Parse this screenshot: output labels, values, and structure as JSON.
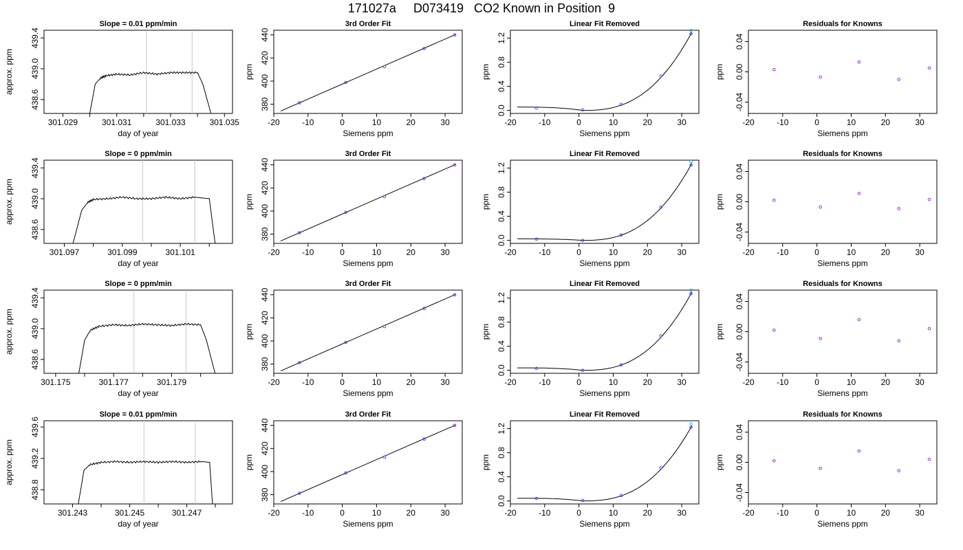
{
  "title": "171027a     D073419   CO2 Known in Position  9",
  "rows": [
    {
      "slope_title": "Slope =  0.01  ppm/min",
      "fit_title": "3rd Order Fit",
      "linfit_title": "Linear Fit Removed",
      "resid_title": "Residuals for Knowns",
      "time_xlabel": "day of year",
      "time_ylabel": "approx. ppm",
      "siemens_xlabel": "Siemens ppm",
      "ppm_ylabel": "ppm",
      "time_xlim": [
        301.0283,
        301.0353
      ],
      "time_xticks": [
        301.029,
        301.03,
        301.031,
        301.032,
        301.033,
        301.034,
        301.035
      ],
      "time_xticklabels": [
        "301.029",
        "",
        "301.031",
        "",
        "301.033",
        "",
        "301.035"
      ],
      "time_ylim": [
        438.42,
        439.5
      ],
      "time_yticks": [
        438.6,
        439.0,
        439.4
      ],
      "time_yticklabels": [
        "438.6",
        "439.0",
        "439.4"
      ],
      "time_vlines": [
        301.0321,
        301.0338
      ],
      "trace": {
        "start": 301.03,
        "rise_end": 301.0306,
        "plateau": 438.93,
        "plateau_end": 301.0341,
        "end": 301.0345,
        "points": [
          [
            301.03,
            438.42
          ],
          [
            301.0302,
            438.8
          ],
          [
            301.0304,
            438.88
          ],
          [
            301.0306,
            438.91
          ],
          [
            301.031,
            438.93
          ],
          [
            301.0315,
            438.92
          ],
          [
            301.032,
            438.95
          ],
          [
            301.0325,
            438.93
          ],
          [
            301.033,
            438.95
          ],
          [
            301.0335,
            438.95
          ],
          [
            301.034,
            438.95
          ],
          [
            301.0342,
            438.8
          ],
          [
            301.0345,
            438.42
          ]
        ]
      },
      "fit_points": [
        [
          -12.5,
          381.2
        ],
        [
          1.0,
          398.8
        ],
        [
          12.3,
          412.5
        ],
        [
          23.9,
          428.1
        ],
        [
          32.8,
          440.0
        ]
      ],
      "linfit_points": [
        [
          -12.4,
          0.04
        ],
        [
          1.1,
          0.01
        ],
        [
          12.3,
          0.1
        ],
        [
          23.9,
          0.57
        ],
        [
          32.7,
          1.27
        ]
      ],
      "linfit_curve_start": 0.055,
      "linfit_ylim": [
        -0.05,
        1.33
      ],
      "resid_points": [
        [
          -12.5,
          0.003
        ],
        [
          1.0,
          -0.007
        ],
        [
          12.3,
          0.013
        ],
        [
          23.9,
          -0.01
        ],
        [
          32.8,
          0.005
        ]
      ]
    },
    {
      "slope_title": "Slope =  0  ppm/min",
      "fit_title": "3rd Order Fit",
      "linfit_title": "Linear Fit Removed",
      "resid_title": "Residuals for Knowns",
      "time_xlabel": "day of year",
      "time_ylabel": "approx. ppm",
      "siemens_xlabel": "Siemens ppm",
      "ppm_ylabel": "ppm",
      "time_xlim": [
        301.0963,
        301.1028
      ],
      "time_xticks": [
        301.097,
        301.098,
        301.099,
        301.1,
        301.101,
        301.102
      ],
      "time_xticklabels": [
        "301.097",
        "",
        "301.099",
        "",
        "301.101",
        ""
      ],
      "time_ylim": [
        438.42,
        439.5
      ],
      "time_yticks": [
        438.6,
        439.0,
        439.4
      ],
      "time_yticklabels": [
        "438.6",
        "439.0",
        "439.4"
      ],
      "time_vlines": [
        301.0997,
        301.1015
      ],
      "trace": {
        "points": [
          [
            301.0973,
            438.42
          ],
          [
            301.0976,
            438.85
          ],
          [
            301.0978,
            438.95
          ],
          [
            301.098,
            438.99
          ],
          [
            301.0985,
            439.0
          ],
          [
            301.099,
            439.02
          ],
          [
            301.0995,
            439.0
          ],
          [
            301.1,
            439.0
          ],
          [
            301.1005,
            439.02
          ],
          [
            301.101,
            439.0
          ],
          [
            301.1015,
            439.02
          ],
          [
            301.102,
            439.0
          ],
          [
            301.1022,
            438.42
          ]
        ]
      },
      "fit_points": [
        [
          -12.5,
          381.2
        ],
        [
          1.0,
          398.8
        ],
        [
          12.3,
          412.5
        ],
        [
          23.9,
          428.1
        ],
        [
          32.8,
          440.0
        ]
      ],
      "linfit_points": [
        [
          -12.4,
          0.02
        ],
        [
          1.1,
          0.0
        ],
        [
          12.3,
          0.09
        ],
        [
          23.9,
          0.55
        ],
        [
          32.7,
          1.25
        ]
      ],
      "linfit_curve_start": 0.025,
      "linfit_ylim": [
        -0.05,
        1.33
      ],
      "resid_points": [
        [
          -12.5,
          0.002
        ],
        [
          1.0,
          -0.007
        ],
        [
          12.3,
          0.011
        ],
        [
          23.9,
          -0.009
        ],
        [
          32.8,
          0.003
        ]
      ]
    },
    {
      "slope_title": "Slope =  0  ppm/min",
      "fit_title": "3rd Order Fit",
      "linfit_title": "Linear Fit Removed",
      "resid_title": "Residuals for Knowns",
      "time_xlabel": "day of year",
      "time_ylabel": "approx. ppm",
      "siemens_xlabel": "Siemens ppm",
      "ppm_ylabel": "ppm",
      "time_xlim": [
        301.1746,
        301.1811
      ],
      "time_xticks": [
        301.175,
        301.176,
        301.177,
        301.178,
        301.179,
        301.18
      ],
      "time_xticklabels": [
        "301.175",
        "",
        "301.177",
        "",
        "301.179",
        ""
      ],
      "time_ylim": [
        438.42,
        439.5
      ],
      "time_yticks": [
        438.6,
        439.0,
        439.4
      ],
      "time_yticklabels": [
        "438.6",
        "439.0",
        "439.4"
      ],
      "time_vlines": [
        301.1777,
        301.1795
      ],
      "trace": {
        "points": [
          [
            301.1758,
            438.42
          ],
          [
            301.176,
            438.85
          ],
          [
            301.1762,
            438.98
          ],
          [
            301.1765,
            439.03
          ],
          [
            301.177,
            439.05
          ],
          [
            301.1775,
            439.04
          ],
          [
            301.178,
            439.06
          ],
          [
            301.1785,
            439.05
          ],
          [
            301.179,
            439.04
          ],
          [
            301.1795,
            439.06
          ],
          [
            301.18,
            439.05
          ],
          [
            301.1802,
            438.85
          ],
          [
            301.1805,
            438.42
          ]
        ]
      },
      "fit_points": [
        [
          -12.5,
          381.2
        ],
        [
          1.0,
          398.8
        ],
        [
          12.3,
          412.5
        ],
        [
          23.9,
          428.1
        ],
        [
          32.8,
          440.0
        ]
      ],
      "linfit_points": [
        [
          -12.4,
          0.03
        ],
        [
          1.1,
          0.0
        ],
        [
          12.3,
          0.09
        ],
        [
          23.9,
          0.57
        ],
        [
          32.7,
          1.27
        ]
      ],
      "linfit_curve_start": 0.04,
      "linfit_ylim": [
        -0.05,
        1.33
      ],
      "resid_points": [
        [
          -12.5,
          0.002
        ],
        [
          1.0,
          -0.009
        ],
        [
          12.3,
          0.016
        ],
        [
          23.9,
          -0.012
        ],
        [
          32.8,
          0.004
        ]
      ]
    },
    {
      "slope_title": "Slope =  0.01  ppm/min",
      "fit_title": "3rd Order Fit",
      "linfit_title": "Linear Fit Removed",
      "resid_title": "Residuals for Knowns",
      "time_xlabel": "day of year",
      "time_ylabel": "approx. ppm",
      "siemens_xlabel": "Siemens ppm",
      "ppm_ylabel": "ppm",
      "time_xlim": [
        301.242,
        301.2486
      ],
      "time_xticks": [
        301.243,
        301.244,
        301.245,
        301.246,
        301.247,
        301.248
      ],
      "time_xticklabels": [
        "301.243",
        "",
        "301.245",
        "",
        "301.247",
        ""
      ],
      "time_ylim": [
        438.62,
        439.68
      ],
      "time_yticks": [
        438.8,
        439.2,
        439.6
      ],
      "time_yticklabels": [
        "438.8",
        "439.2",
        "439.6"
      ],
      "time_vlines": [
        301.2455,
        301.2473
      ],
      "trace": {
        "points": [
          [
            301.2432,
            438.62
          ],
          [
            301.2434,
            439.05
          ],
          [
            301.2436,
            439.12
          ],
          [
            301.244,
            439.15
          ],
          [
            301.2445,
            439.16
          ],
          [
            301.245,
            439.15
          ],
          [
            301.2455,
            439.16
          ],
          [
            301.246,
            439.15
          ],
          [
            301.2465,
            439.16
          ],
          [
            301.247,
            439.15
          ],
          [
            301.2475,
            439.16
          ],
          [
            301.2478,
            439.15
          ],
          [
            301.2479,
            438.62
          ]
        ]
      },
      "fit_points": [
        [
          -12.5,
          381.2
        ],
        [
          1.0,
          398.8
        ],
        [
          12.3,
          412.5
        ],
        [
          23.9,
          428.1
        ],
        [
          32.8,
          440.0
        ]
      ],
      "linfit_points": [
        [
          -12.4,
          0.04
        ],
        [
          1.1,
          0.01
        ],
        [
          12.3,
          0.09
        ],
        [
          23.9,
          0.55
        ],
        [
          32.7,
          1.22
        ]
      ],
      "linfit_curve_start": 0.045,
      "linfit_ylim": [
        -0.05,
        1.33
      ],
      "resid_points": [
        [
          -12.5,
          0.002
        ],
        [
          1.0,
          -0.008
        ],
        [
          12.3,
          0.015
        ],
        [
          23.9,
          -0.011
        ],
        [
          32.8,
          0.004
        ]
      ]
    }
  ],
  "siemens_xlim": [
    -20,
    35
  ],
  "siemens_xticks": [
    -20,
    -10,
    0,
    10,
    20,
    30
  ],
  "fit_ylim": [
    372,
    444
  ],
  "fit_yticks": [
    380,
    400,
    420,
    440
  ],
  "fit_yticklabels": [
    "380",
    "400",
    "420",
    "440"
  ],
  "linfit_yticks": [
    0.0,
    0.4,
    0.8,
    1.2
  ],
  "linfit_yticklabels": [
    "0.0",
    "0.4",
    "0.8",
    "1.2"
  ],
  "resid_ylim": [
    -0.055,
    0.055
  ],
  "resid_yticks": [
    -0.04,
    0.0,
    0.04
  ],
  "resid_yticklabels": [
    "-0.04",
    "0.00",
    "0.04"
  ],
  "colors": {
    "point_blue": "#3355ff",
    "point_purple": "#9933cc",
    "point_cyan": "#33aaff",
    "vline": "#c8c8c8",
    "red_marker": "#ff0000"
  },
  "chart_data": {
    "type": "scatter",
    "title": "171027a     D073419   CO2 Known in Position  9",
    "panels_per_row": [
      "time series trace",
      "3rd Order Fit",
      "Linear Fit Removed",
      "Residuals for Knowns"
    ]
  }
}
